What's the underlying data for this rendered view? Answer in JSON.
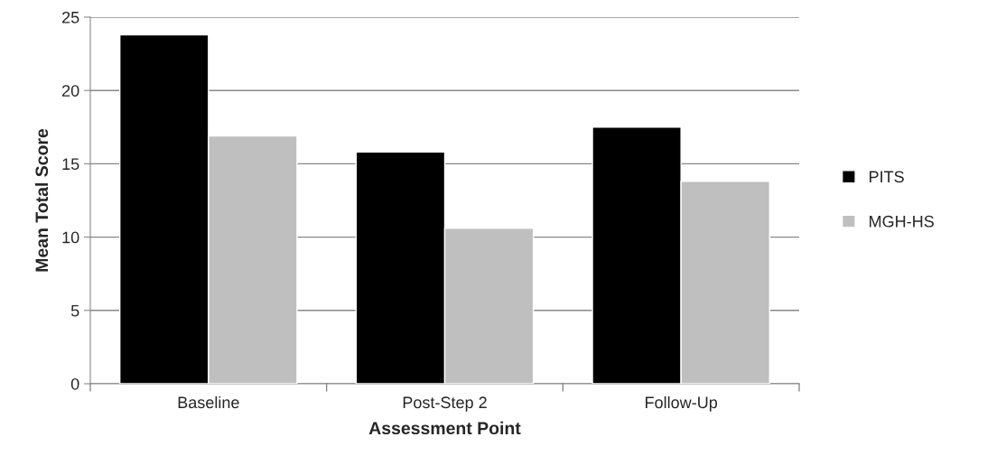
{
  "chart_data": {
    "type": "bar",
    "xlabel": "Assessment Point",
    "ylabel": "Mean Total Score",
    "categories": [
      "Baseline",
      "Post-Step 2",
      "Follow-Up"
    ],
    "series": [
      {
        "name": "PITS",
        "color": "#000000",
        "values": [
          23.8,
          15.8,
          17.5
        ]
      },
      {
        "name": "MGH-HS",
        "color": "#bfbfbf",
        "values": [
          16.9,
          10.6,
          13.8
        ]
      }
    ],
    "ylim": [
      0,
      25
    ],
    "yticks": [
      0,
      5,
      10,
      15,
      20,
      25
    ],
    "grid": "y",
    "legend": "right"
  }
}
